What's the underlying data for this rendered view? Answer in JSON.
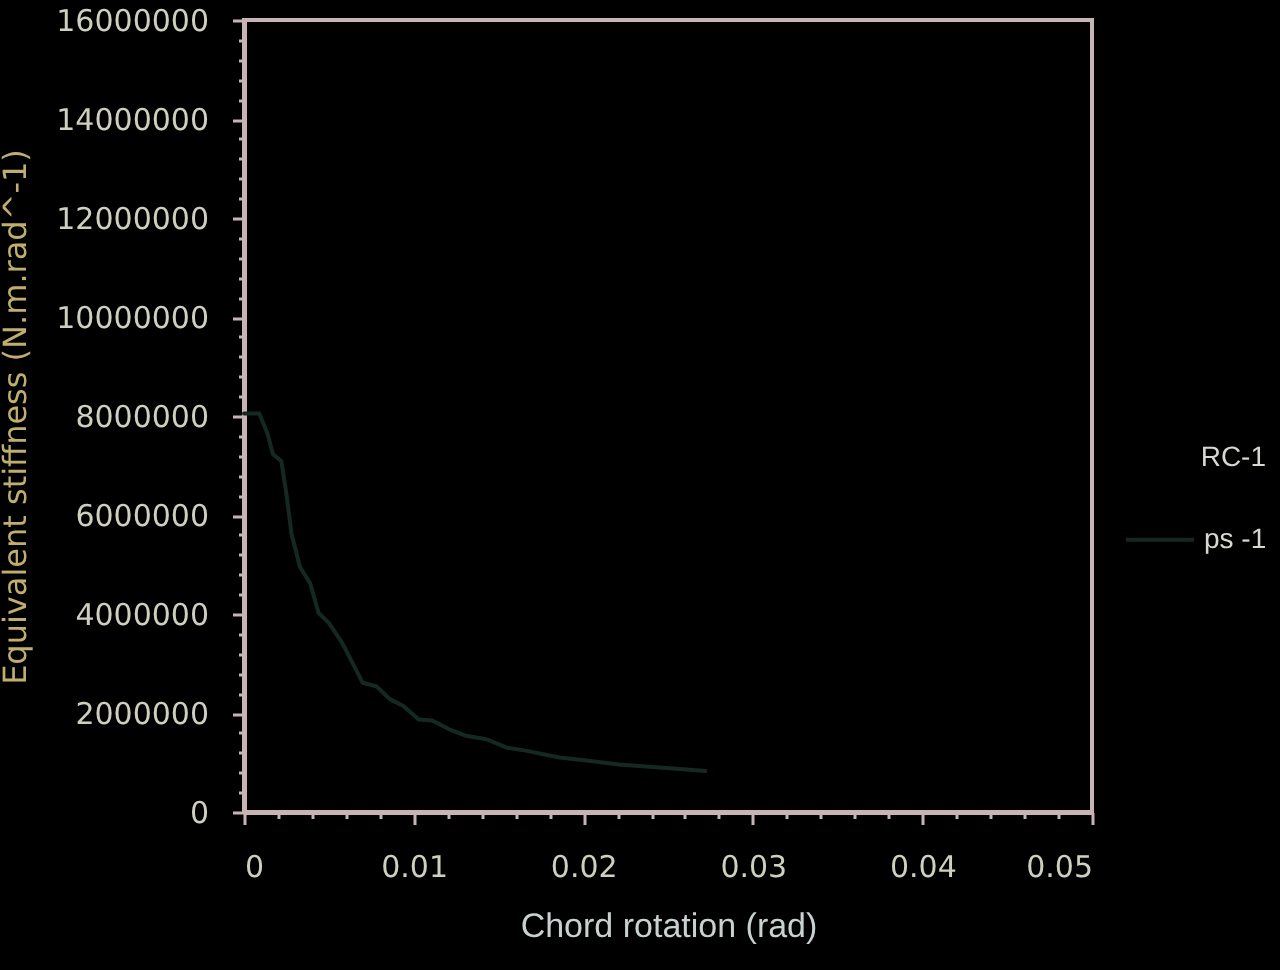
{
  "chart_data": {
    "type": "line",
    "xlabel": "Chord rotation (rad)",
    "ylabel": "Equivalent stiffness (N.m.rad^-1)",
    "legend_title": "RC-1",
    "legend": "right",
    "line_style": "solid",
    "x": [
      0,
      0.0009,
      0.0014,
      0.0017,
      0.0022,
      0.0025,
      0.0028,
      0.0033,
      0.0039,
      0.0044,
      0.005,
      0.0058,
      0.007,
      0.0078,
      0.0086,
      0.0094,
      0.0103,
      0.0111,
      0.0121,
      0.0131,
      0.0143,
      0.0155,
      0.0166,
      0.0186,
      0.0202,
      0.0221,
      0.0241,
      0.0261,
      0.0272
    ],
    "series": [
      {
        "name": "ps -1",
        "color": "#142a20",
        "values": [
          8050000,
          8050000,
          7630000,
          7230000,
          7090000,
          6430000,
          5620000,
          4950000,
          4620000,
          4020000,
          3820000,
          3410000,
          2610000,
          2540000,
          2280000,
          2140000,
          1870000,
          1850000,
          1670000,
          1540000,
          1470000,
          1300000,
          1240000,
          1100000,
          1040000,
          960000,
          910000,
          860000,
          830000
        ]
      }
    ],
    "xlim": [
      0,
      0.05
    ],
    "xticks": [
      0,
      {
        "value": 0.002,
        "label": null
      },
      {
        "value": 0.004,
        "label": null
      },
      {
        "value": 0.006,
        "label": null
      },
      {
        "value": 0.008,
        "label": null
      },
      0.01,
      {
        "value": 0.012,
        "label": null
      },
      {
        "value": 0.014,
        "label": null
      },
      {
        "value": 0.016,
        "label": null
      },
      {
        "value": 0.018,
        "label": null
      },
      0.02,
      {
        "value": 0.022,
        "label": null
      },
      {
        "value": 0.024,
        "label": null
      },
      {
        "value": 0.026,
        "label": null
      },
      {
        "value": 0.028,
        "label": null
      },
      0.03,
      {
        "value": 0.032,
        "label": null
      },
      {
        "value": 0.034,
        "label": null
      },
      {
        "value": 0.036,
        "label": null
      },
      {
        "value": 0.038,
        "label": null
      },
      0.04,
      {
        "value": 0.042,
        "label": null
      },
      {
        "value": 0.044,
        "label": null
      },
      {
        "value": 0.046,
        "label": null
      },
      {
        "value": 0.048,
        "label": null
      },
      0.05
    ],
    "ylim": [
      0,
      16000000
    ],
    "yticks": [
      0,
      {
        "value": 400000,
        "label": null
      },
      {
        "value": 800000,
        "label": null
      },
      {
        "value": 1200000,
        "label": null
      },
      {
        "value": 1600000,
        "label": null
      },
      2000000,
      {
        "value": 2400000,
        "label": null
      },
      {
        "value": 2800000,
        "label": null
      },
      {
        "value": 3200000,
        "label": null
      },
      {
        "value": 3600000,
        "label": null
      },
      4000000,
      {
        "value": 4400000,
        "label": null
      },
      {
        "value": 4800000,
        "label": null
      },
      {
        "value": 5200000,
        "label": null
      },
      {
        "value": 5600000,
        "label": null
      },
      6000000,
      {
        "value": 6400000,
        "label": null
      },
      {
        "value": 6800000,
        "label": null
      },
      {
        "value": 7200000,
        "label": null
      },
      {
        "value": 7600000,
        "label": null
      },
      8000000,
      {
        "value": 8400000,
        "label": null
      },
      {
        "value": 8800000,
        "label": null
      },
      {
        "value": 9200000,
        "label": null
      },
      {
        "value": 9600000,
        "label": null
      },
      10000000,
      {
        "value": 10400000,
        "label": null
      },
      {
        "value": 10800000,
        "label": null
      },
      {
        "value": 11200000,
        "label": null
      },
      {
        "value": 11600000,
        "label": null
      },
      12000000,
      {
        "value": 12400000,
        "label": null
      },
      {
        "value": 12800000,
        "label": null
      },
      {
        "value": 13200000,
        "label": null
      },
      {
        "value": 13600000,
        "label": null
      },
      14000000,
      {
        "value": 14400000,
        "label": null
      },
      {
        "value": 14800000,
        "label": null
      },
      {
        "value": 15200000,
        "label": null
      },
      {
        "value": 15600000,
        "label": null
      },
      16000000
    ]
  }
}
